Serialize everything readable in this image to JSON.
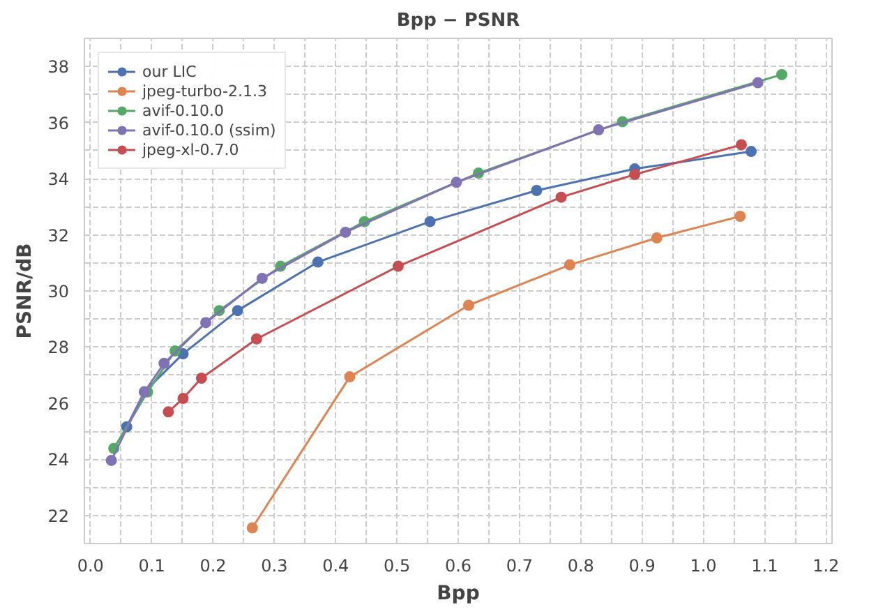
{
  "chart_data": {
    "type": "line",
    "title": "Bpp − PSNR",
    "xlabel": "Bpp",
    "ylabel": "PSNR/dB",
    "xlim": [
      -0.01,
      1.21
    ],
    "ylim": [
      21.0,
      39.0
    ],
    "xticks": [
      {
        "value": 0,
        "label": "0.0"
      },
      {
        "value": 0.05,
        "label": null
      },
      0.1,
      {
        "value": 0.15,
        "label": null
      },
      0.2,
      {
        "value": 0.25,
        "label": null
      },
      0.3,
      {
        "value": 0.35,
        "label": null
      },
      0.4,
      {
        "value": 0.45,
        "label": null
      },
      0.5,
      {
        "value": 0.55,
        "label": null
      },
      0.6,
      {
        "value": 0.65,
        "label": null
      },
      0.7,
      {
        "value": 0.75,
        "label": null
      },
      0.8,
      {
        "value": 0.85,
        "label": null
      },
      0.9,
      {
        "value": 0.95,
        "label": null
      },
      {
        "value": 1,
        "label": "1.0"
      },
      {
        "value": 1.05,
        "label": null
      },
      1.1,
      {
        "value": 1.15,
        "label": null
      },
      1.2
    ],
    "yticks": [
      {
        "value": 21,
        "label": null
      },
      22,
      {
        "value": 23,
        "label": null
      },
      24,
      {
        "value": 25,
        "label": null
      },
      26,
      {
        "value": 27,
        "label": null
      },
      28,
      {
        "value": 29,
        "label": null
      },
      30,
      {
        "value": 31,
        "label": null
      },
      32,
      {
        "value": 33,
        "label": null
      },
      34,
      {
        "value": 35,
        "label": null
      },
      36,
      {
        "value": 37,
        "label": null
      },
      38,
      {
        "value": 39,
        "label": null
      }
    ],
    "grid": true,
    "legend": "top left",
    "marker": "circle",
    "line_style": "solid",
    "series": [
      {
        "name": "our LIC",
        "color": "#4c72b0",
        "x": [
          0.059,
          0.088,
          0.151,
          0.24,
          0.371,
          0.554,
          0.728,
          0.888,
          1.078
        ],
        "values": [
          25.16,
          26.41,
          27.76,
          29.3,
          31.03,
          32.47,
          33.58,
          34.35,
          34.97
        ]
      },
      {
        "name": "jpeg-turbo-2.1.3",
        "color": "#dd8452",
        "x": [
          0.264,
          0.423,
          0.617,
          0.782,
          0.924,
          1.06
        ],
        "values": [
          21.56,
          26.94,
          29.49,
          30.93,
          31.89,
          32.66
        ]
      },
      {
        "name": "avif-0.10.0",
        "color": "#55a868",
        "x": [
          0.038,
          0.093,
          0.138,
          0.21,
          0.31,
          0.447,
          0.633,
          0.868,
          1.128
        ],
        "values": [
          24.39,
          26.4,
          27.86,
          29.3,
          30.88,
          32.47,
          34.2,
          36.03,
          37.71
        ]
      },
      {
        "name": "avif-0.10.0 (ssim)",
        "color": "#8172b3",
        "x": [
          0.034,
          0.088,
          0.12,
          0.188,
          0.28,
          0.416,
          0.597,
          0.829,
          1.089
        ],
        "values": [
          23.96,
          26.4,
          27.42,
          28.87,
          30.45,
          32.09,
          33.87,
          35.74,
          37.42
        ]
      },
      {
        "name": "jpeg-xl-0.7.0",
        "color": "#c44e52",
        "x": [
          0.127,
          0.151,
          0.181,
          0.271,
          0.502,
          0.768,
          0.888,
          1.062
        ],
        "values": [
          25.69,
          26.17,
          26.89,
          28.29,
          30.88,
          33.34,
          34.15,
          35.21
        ]
      }
    ]
  }
}
